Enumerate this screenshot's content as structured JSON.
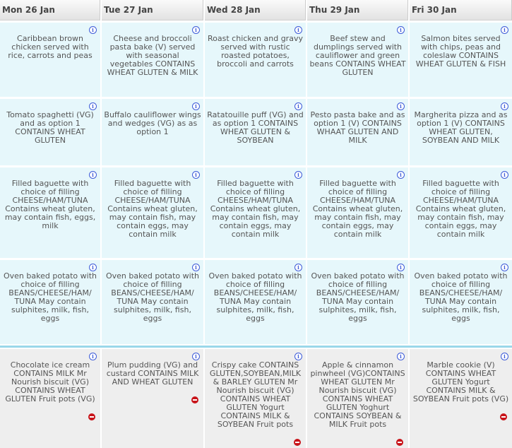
{
  "days": [
    "Mon 26 Jan",
    "Tue 27 Jan",
    "Wed 28 Jan",
    "Thu 29 Jan",
    "Fri 30 Jan"
  ],
  "rows": [
    [
      "Caribbean brown chicken served with rice, carrots and peas",
      "Cheese and broccoli pasta bake (V) served with seasonal vegetables CONTAINS WHEAT GLUTEN & MILK",
      "Roast chicken and gravy served with rustic roasted potatoes, broccoli and carrots",
      "Beef stew and dumplings served with cauliflower and green beans CONTAINS WHEAT GLUTEN",
      "Salmon bites served with chips, peas and coleslaw CONTAINS WHEAT GLUTEN & FISH"
    ],
    [
      "Tomato spaghetti (VG) and as option 1 CONTAINS WHEAT GLUTEN",
      "Buffalo cauliflower wings and wedges (VG) as as option 1",
      "Ratatouille puff (VG) and as option 1 CONTAINS WHEAT GLUTEN & SOYBEAN",
      "Pesto pasta bake and as option 1 (V) CONTAINS WHAAT GLUTEN AND MILK",
      "Margherita pizza and as option 1 (V) CONTAINS WHEAT GLUTEN, SOYBEAN AND MILK"
    ],
    [
      "Filled baguette with choice of filling CHEESE/HAM/TUNA Contains wheat gluten, may contain fish, eggs, milk",
      "Filled baguette with choice of filling CHEESE/HAM/TUNA Contains wheat gluten, may contain fish, may contain eggs, may contain milk",
      "Filled baguette with choice of filling CHEESE/HAM/TUNA Contains wheat gluten, may contain fish, may contain eggs, may contain milk",
      "Filled baguette with choice of filling CHEESE/HAM/TUNA Contains wheat gluten, may contain fish, may contain eggs, may contain milk",
      "Filled baguette with choice of filling CHEESE/HAM/TUNA Contains wheat gluten, may contain fish, may contain eggs, may contain milk"
    ],
    [
      "Oven baked potato with choice of filling BEANS/CHEESE/HAM/ TUNA May contain sulphites, milk, fish, eggs",
      "Oven baked potato with choice of filling BEANS/CHEESE/HAM/ TUNA May contain sulphites, milk, fish, eggs",
      "Oven baked potato with choice of filling BEANS/CHEESE/HAM/ TUNA May contain sulphites, milk, fish, eggs",
      "Oven baked potato with choice of filling BEANS/CHEESE/HAM/ TUNA May contain sulphites, milk, fish, eggs",
      "Oven baked potato with choice of filling BEANS/CHEESE/HAM/ TUNA May contain sulphites, milk, fish, eggs"
    ]
  ],
  "desserts": [
    "Chocolate ice cream CONTAINS MILK Mr Nourish biscuit (VG) CONTAINS WHEAT GLUTEN Fruit pots (VG)",
    "Plum pudding (VG) and custard CONTAINS MILK AND WHEAT GLUTEN",
    "Crispy cake CONTAINS GLUTEN,SOYBEAN,MILK & BARLEY GLUTEN Mr Nourish biscuit (VG) CONTAINS WHEAT GLUTEN Yogurt CONTAINS MILK & SOYBEAN Fruit pots",
    "Apple & cinnamon pinwheel (VG)CONTAINS WHEAT GLUTEN Mr Nourish biscuit (VG) CONTAINS WHEAT GLUTEN Yoghurt CONTAINS SOYBEAN & MILK Fruit pots",
    "Marble cookie (V) CONTAINS WHEAT GLUTEN Yogurt CONTAINS MILK & SOYBEAN Fruit pots (VG)"
  ],
  "icons": {
    "info": "info-icon",
    "remove": "remove-icon"
  },
  "colors": {
    "cell": "#e6f7fb",
    "dessert": "#eeeeee",
    "separator": "#9bd8ea",
    "remove": "#c8141a",
    "info": "#3d5bd8"
  }
}
